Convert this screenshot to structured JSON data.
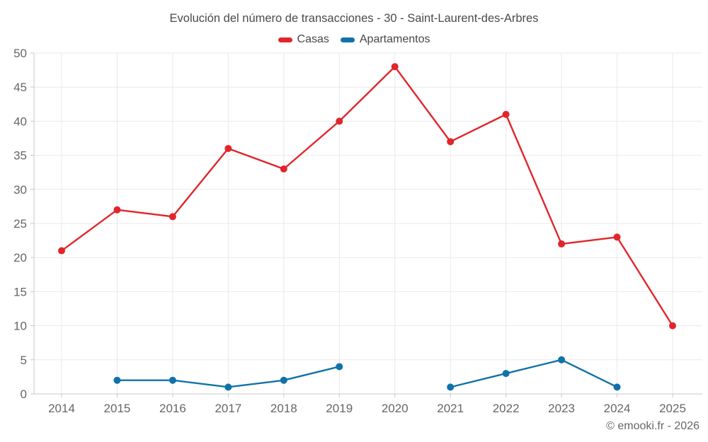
{
  "title": "Evolución del número de transacciones - 30 - Saint-Laurent-des-Arbres",
  "legend": [
    {
      "label": "Casas",
      "color": "#e0262c"
    },
    {
      "label": "Apartamentos",
      "color": "#1072a8"
    }
  ],
  "footer": "© emooki.fr - 2026",
  "chart_data": {
    "type": "line",
    "title": "Evolución del número de transacciones - 30 - Saint-Laurent-des-Arbres",
    "categories": [
      2014,
      2015,
      2016,
      2017,
      2018,
      2019,
      2020,
      2021,
      2022,
      2023,
      2024,
      2025
    ],
    "series": [
      {
        "name": "Casas",
        "color": "#e0262c",
        "values": [
          21,
          27,
          26,
          36,
          33,
          40,
          48,
          37,
          41,
          22,
          23,
          10
        ]
      },
      {
        "name": "Apartamentos",
        "color": "#1072a8",
        "values": [
          null,
          2,
          2,
          1,
          2,
          4,
          null,
          1,
          3,
          5,
          1,
          null
        ]
      }
    ],
    "xlabel": "",
    "ylabel": "",
    "ylim": [
      0,
      50
    ],
    "yticks": [
      0,
      5,
      10,
      15,
      20,
      25,
      30,
      35,
      40,
      45,
      50
    ],
    "grid": true,
    "legend_position": "top",
    "marker": "circle"
  },
  "style_colors": {
    "grid": "#e9e9e9",
    "axis": "#c8c8c8",
    "tick_text": "#666666"
  }
}
